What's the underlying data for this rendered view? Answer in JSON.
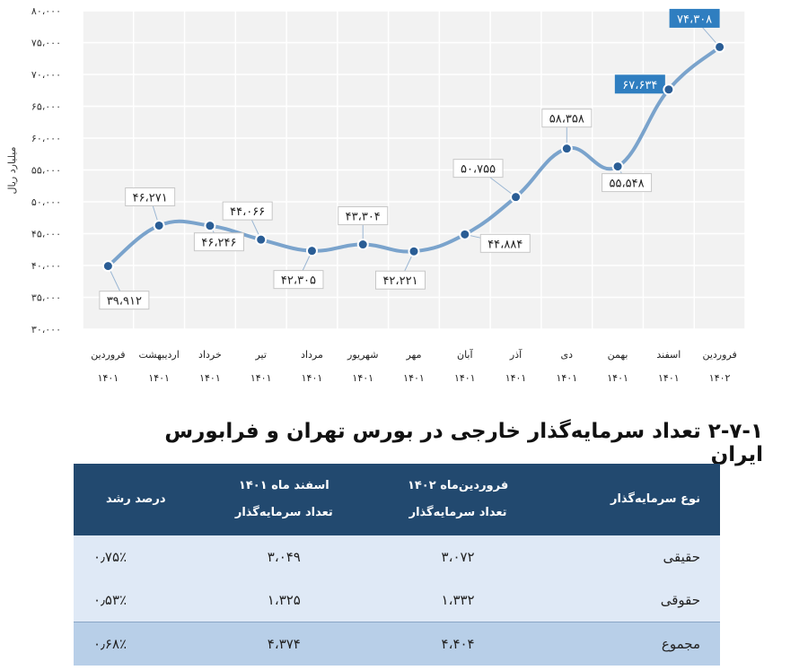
{
  "chart_data": {
    "type": "line",
    "ylabel": "میلیارد ریال",
    "ylim": [
      30000,
      80000
    ],
    "yticks": [
      "۸۰،۰۰۰",
      "۷۵،۰۰۰",
      "۷۰،۰۰۰",
      "۶۵،۰۰۰",
      "۶۰،۰۰۰",
      "۵۵،۰۰۰",
      "۵۰،۰۰۰",
      "۴۵،۰۰۰",
      "۴۰،۰۰۰",
      "۳۵،۰۰۰",
      "۳۰،۰۰۰"
    ],
    "ytick_values": [
      80000,
      75000,
      70000,
      65000,
      60000,
      55000,
      50000,
      45000,
      40000,
      35000,
      30000
    ],
    "grid": true,
    "categories": [
      {
        "month": "فروردین",
        "year": "۱۴۰۱"
      },
      {
        "month": "اردیبهشت",
        "year": "۱۴۰۱"
      },
      {
        "month": "خرداد",
        "year": "۱۴۰۱"
      },
      {
        "month": "تیر",
        "year": "۱۴۰۱"
      },
      {
        "month": "مرداد",
        "year": "۱۴۰۱"
      },
      {
        "month": "شهریور",
        "year": "۱۴۰۱"
      },
      {
        "month": "مهر",
        "year": "۱۴۰۱"
      },
      {
        "month": "آبان",
        "year": "۱۴۰۱"
      },
      {
        "month": "آذر",
        "year": "۱۴۰۱"
      },
      {
        "month": "دی",
        "year": "۱۴۰۱"
      },
      {
        "month": "بهمن",
        "year": "۱۴۰۱"
      },
      {
        "month": "اسفند",
        "year": "۱۴۰۱"
      },
      {
        "month": "فروردین",
        "year": "۱۴۰۲"
      }
    ],
    "values": [
      39912,
      46271,
      46246,
      44066,
      42305,
      43304,
      42221,
      44884,
      50755,
      58358,
      55548,
      67634,
      74308
    ],
    "value_labels": [
      "۳۹،۹۱۲",
      "۴۶،۲۷۱",
      "۴۶،۲۴۶",
      "۴۴،۰۶۶",
      "۴۲،۳۰۵",
      "۴۳،۳۰۴",
      "۴۲،۲۲۱",
      "۴۴،۸۸۴",
      "۵۰،۷۵۵",
      "۵۸،۳۵۸",
      "۵۵،۵۴۸",
      "۶۷،۶۳۴",
      "۷۴،۳۰۸"
    ],
    "highlighted_labels": [
      11,
      12
    ],
    "colors": {
      "line": "#7aa3cc",
      "marker": "#2a5d95",
      "plot_bg": "#f2f2f2",
      "grid": "#ffffff",
      "highlight_box": "#2f7ec0"
    }
  },
  "section": {
    "title": "۲-۷-۱ تعداد سرمایه‌گذار خارجی در بورس تهران و فرابورس ایران"
  },
  "table": {
    "headers": {
      "type": "نوع سرمایه‌گذار",
      "col1_line1": "فروردین‌ماه ۱۴۰۲",
      "col1_line2": "تعداد سرمایه‌گذار",
      "col2_line1": "اسفند ماه ۱۴۰۱",
      "col2_line2": "تعداد سرمایه‌گذار",
      "growth": "درصد رشد"
    },
    "rows": [
      {
        "type": "حقیقی",
        "col1": "۳،۰۷۲",
        "col2": "۳،۰۴۹",
        "growth": "۰٫۷۵٪"
      },
      {
        "type": "حقوقی",
        "col1": "۱،۳۳۲",
        "col2": "۱،۳۲۵",
        "growth": "۰٫۵۳٪"
      },
      {
        "type": "مجموع",
        "col1": "۴،۴۰۴",
        "col2": "۴،۳۷۴",
        "growth": "۰٫۶۸٪"
      }
    ]
  }
}
